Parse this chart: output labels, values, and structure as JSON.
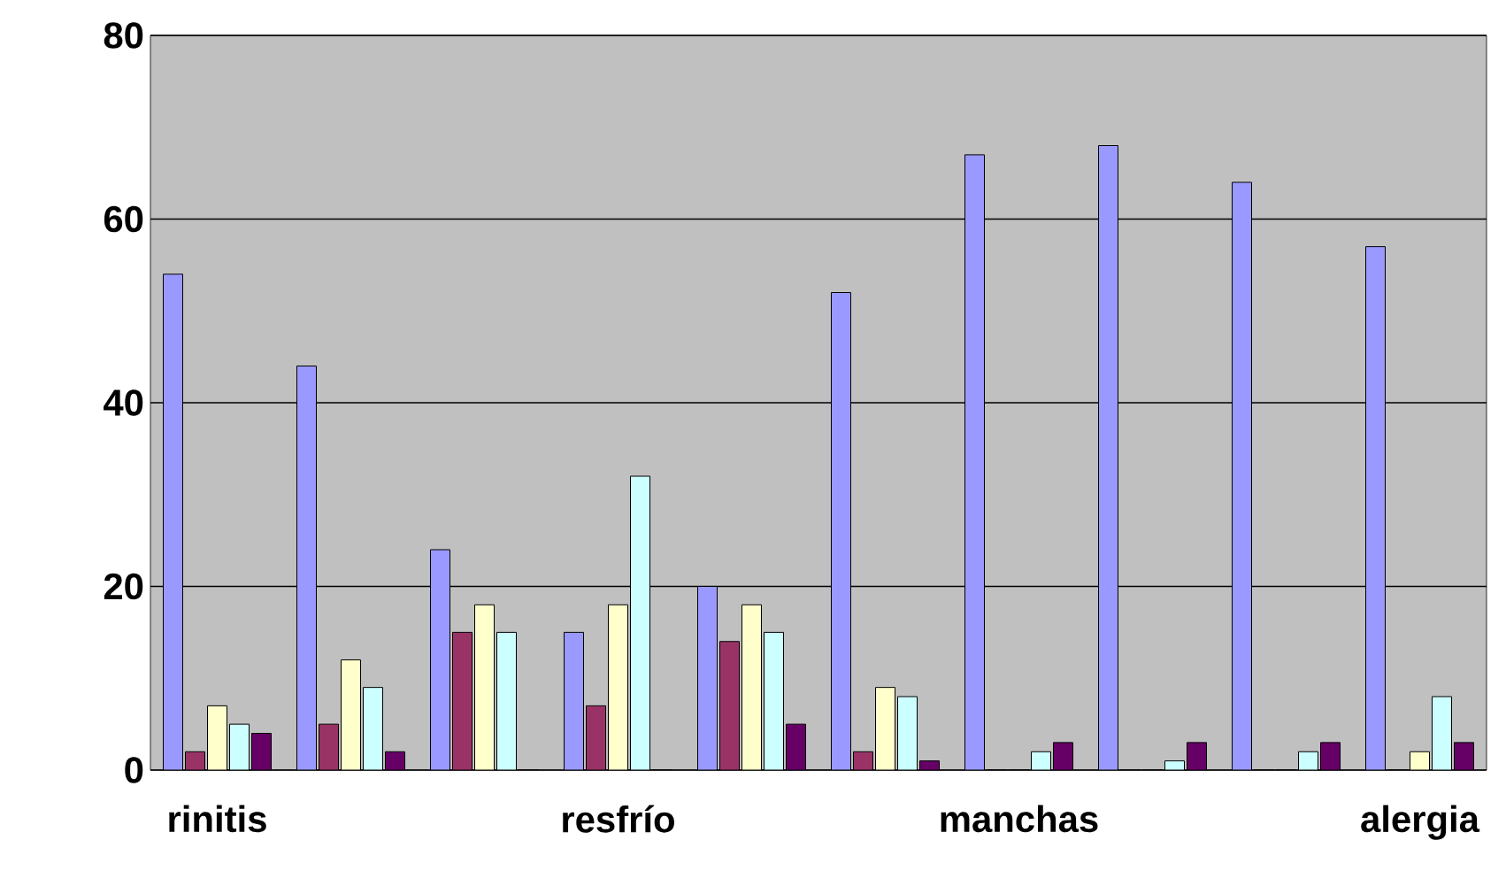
{
  "chart_data": {
    "type": "bar",
    "categories": [
      "rinitis",
      null,
      null,
      "resfrío",
      null,
      null,
      "manchas",
      null,
      null,
      "alergia"
    ],
    "series": [
      {
        "color": "#9999ff",
        "values": [
          54,
          44,
          24,
          15,
          20,
          52,
          67,
          68,
          64,
          57
        ]
      },
      {
        "color": "#993366",
        "values": [
          2,
          5,
          15,
          7,
          14,
          2,
          0,
          0,
          0,
          0
        ]
      },
      {
        "color": "#ffffcc",
        "values": [
          7,
          12,
          18,
          18,
          18,
          9,
          0,
          0,
          0,
          2
        ]
      },
      {
        "color": "#ccffff",
        "values": [
          5,
          9,
          15,
          32,
          15,
          8,
          2,
          1,
          2,
          8
        ]
      },
      {
        "color": "#660066",
        "values": [
          4,
          2,
          0,
          0,
          5,
          1,
          3,
          3,
          3,
          3
        ]
      }
    ],
    "ylim": [
      0,
      80
    ],
    "yticks": [
      0,
      20,
      40,
      60,
      80
    ],
    "grid": "y"
  }
}
